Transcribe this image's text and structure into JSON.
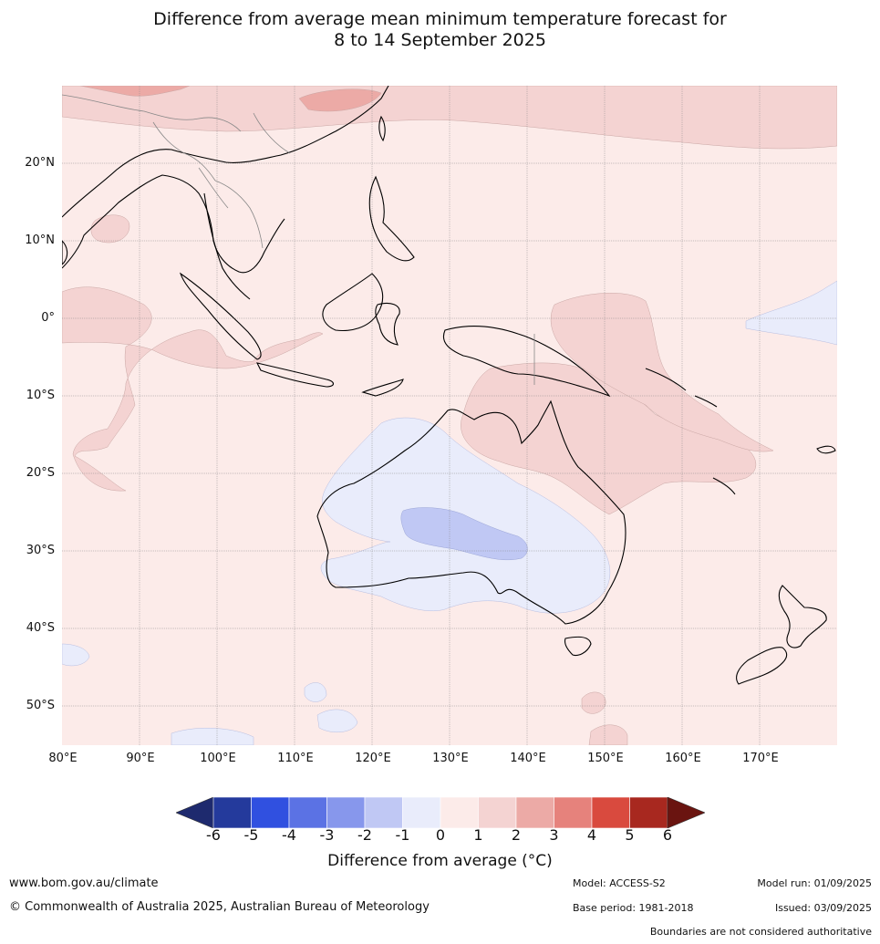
{
  "title_line1": "Difference from average mean minimum temperature forecast for",
  "title_line2": "8 to 14 September 2025",
  "map": {
    "lat_labels": [
      "20°N",
      "10°N",
      "0°",
      "10°S",
      "20°S",
      "30°S",
      "40°S",
      "50°S"
    ],
    "lon_labels": [
      "80°E",
      "90°E",
      "100°E",
      "110°E",
      "120°E",
      "130°E",
      "140°E",
      "150°E",
      "160°E",
      "170°E"
    ],
    "lon_range": [
      80,
      180
    ],
    "lat_range": [
      -55,
      30
    ],
    "gridlines": true
  },
  "legend": {
    "ticks": [
      "-6",
      "-5",
      "-4",
      "-3",
      "-2",
      "-1",
      "0",
      "1",
      "2",
      "3",
      "4",
      "5",
      "6"
    ],
    "colors": [
      "#243a9c",
      "#3050e0",
      "#5b72e4",
      "#8797ec",
      "#c0c8f4",
      "#e9ecfb",
      "#fcebe9",
      "#f4d3d2",
      "#ecaaa6",
      "#e6827c",
      "#d94a3e",
      "#a8281f"
    ],
    "extend_low_color": "#1e2a6e",
    "extend_high_color": "#6a1410",
    "label": "Difference from average (°C)"
  },
  "footer": {
    "website": "www.bom.gov.au/climate",
    "copyright": "© Commonwealth of Australia 2025, Australian Bureau of Meteorology",
    "model": "Model: ACCESS-S2",
    "base_period": "Base period: 1981-2018",
    "model_run": "Model run: 01/09/2025",
    "issued": "Issued: 03/09/2025",
    "disclaimer": "Boundaries are not considered authoritative"
  }
}
